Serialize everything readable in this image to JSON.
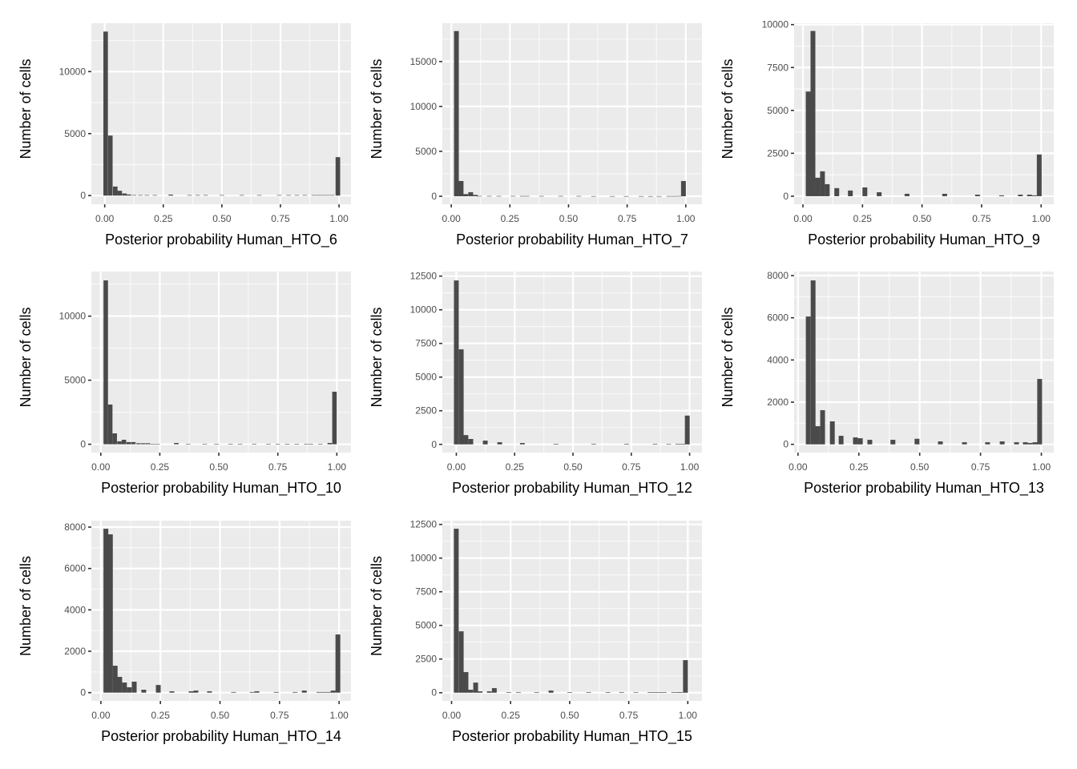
{
  "chart_data": [
    {
      "type": "bar",
      "title": "",
      "xlabel": "Posterior probability Human_HTO_6",
      "ylabel": "Number of cells",
      "xlim": [
        -0.057,
        1.051
      ],
      "ylim": [
        -700,
        13900
      ],
      "grid": true,
      "xticks": [
        "0.00",
        "0.25",
        "0.50",
        "0.75",
        "1.00"
      ],
      "yticks": [
        0,
        5000,
        10000
      ],
      "binwidth": 0.0194,
      "bins": [
        [
          0.004,
          13230
        ],
        [
          0.024,
          4840
        ],
        [
          0.045,
          730
        ],
        [
          0.064,
          390
        ],
        [
          0.084,
          170
        ],
        [
          0.103,
          90
        ],
        [
          0.125,
          40
        ],
        [
          0.152,
          40
        ],
        [
          0.18,
          40
        ],
        [
          0.214,
          40
        ],
        [
          0.282,
          80
        ],
        [
          0.362,
          40
        ],
        [
          0.397,
          40
        ],
        [
          0.431,
          40
        ],
        [
          0.5,
          40
        ],
        [
          0.585,
          40
        ],
        [
          0.66,
          40
        ],
        [
          0.745,
          40
        ],
        [
          0.785,
          40
        ],
        [
          0.82,
          40
        ],
        [
          0.854,
          40
        ],
        [
          0.892,
          40
        ],
        [
          0.912,
          40
        ],
        [
          0.931,
          40
        ],
        [
          0.951,
          40
        ],
        [
          0.971,
          40
        ],
        [
          0.995,
          3100
        ]
      ]
    },
    {
      "type": "bar",
      "title": "",
      "xlabel": "Posterior probability Human_HTO_7",
      "ylabel": "Number of cells",
      "xlim": [
        -0.038,
        1.069
      ],
      "ylim": [
        -890,
        19260
      ],
      "grid": true,
      "xticks": [
        "0.00",
        "0.25",
        "0.50",
        "0.75",
        "1.00"
      ],
      "yticks": [
        0,
        5000,
        10000,
        15000
      ],
      "binwidth": 0.0205,
      "bins": [
        [
          0.022,
          18390
        ],
        [
          0.042,
          1700
        ],
        [
          0.062,
          240
        ],
        [
          0.083,
          450
        ],
        [
          0.103,
          150
        ],
        [
          0.12,
          30
        ],
        [
          0.162,
          30
        ],
        [
          0.203,
          30
        ],
        [
          0.264,
          30
        ],
        [
          0.303,
          30
        ],
        [
          0.323,
          30
        ],
        [
          0.385,
          30
        ],
        [
          0.467,
          30
        ],
        [
          0.544,
          30
        ],
        [
          0.607,
          15
        ],
        [
          0.687,
          15
        ],
        [
          0.746,
          15
        ],
        [
          0.81,
          15
        ],
        [
          0.85,
          15
        ],
        [
          0.886,
          15
        ],
        [
          0.928,
          20
        ],
        [
          0.949,
          20
        ],
        [
          0.97,
          30
        ],
        [
          0.99,
          1700
        ]
      ]
    },
    {
      "type": "bar",
      "title": "",
      "xlabel": "Posterior probability Human_HTO_9",
      "ylabel": "Number of cells",
      "xlim": [
        -0.037,
        1.053
      ],
      "ylim": [
        -470,
        10080
      ],
      "grid": true,
      "xticks": [
        "0.00",
        "0.25",
        "0.50",
        "0.75",
        "1.00"
      ],
      "yticks": [
        0,
        2500,
        5000,
        7500,
        10000
      ],
      "binwidth": 0.0202,
      "bins": [
        [
          0.022,
          6100
        ],
        [
          0.042,
          9630
        ],
        [
          0.062,
          1075
        ],
        [
          0.082,
          1450
        ],
        [
          0.102,
          700
        ],
        [
          0.142,
          470
        ],
        [
          0.199,
          330
        ],
        [
          0.26,
          510
        ],
        [
          0.32,
          230
        ],
        [
          0.437,
          140
        ],
        [
          0.595,
          140
        ],
        [
          0.733,
          90
        ],
        [
          0.834,
          50
        ],
        [
          0.913,
          90
        ],
        [
          0.951,
          90
        ],
        [
          0.971,
          50
        ],
        [
          0.992,
          2430
        ]
      ]
    },
    {
      "type": "bar",
      "title": "",
      "xlabel": "Posterior probability Human_HTO_10",
      "ylabel": "Number of cells",
      "xlim": [
        -0.04,
        1.06
      ],
      "ylim": [
        -650,
        13480
      ],
      "grid": true,
      "xticks": [
        "0.00",
        "0.25",
        "0.50",
        "0.75",
        "1.00"
      ],
      "yticks": [
        0,
        5000,
        10000
      ],
      "binwidth": 0.019,
      "bins": [
        [
          0.021,
          12790
        ],
        [
          0.04,
          3100
        ],
        [
          0.059,
          850
        ],
        [
          0.079,
          230
        ],
        [
          0.098,
          350
        ],
        [
          0.118,
          170
        ],
        [
          0.138,
          170
        ],
        [
          0.16,
          80
        ],
        [
          0.18,
          80
        ],
        [
          0.2,
          80
        ],
        [
          0.22,
          30
        ],
        [
          0.24,
          30
        ],
        [
          0.32,
          100
        ],
        [
          0.37,
          30
        ],
        [
          0.44,
          30
        ],
        [
          0.49,
          30
        ],
        [
          0.55,
          30
        ],
        [
          0.59,
          30
        ],
        [
          0.65,
          30
        ],
        [
          0.71,
          30
        ],
        [
          0.75,
          30
        ],
        [
          0.79,
          20
        ],
        [
          0.83,
          30
        ],
        [
          0.87,
          30
        ],
        [
          0.89,
          30
        ],
        [
          0.93,
          30
        ],
        [
          0.97,
          100
        ],
        [
          0.99,
          4100
        ]
      ]
    },
    {
      "type": "bar",
      "title": "",
      "xlabel": "Posterior probability Human_HTO_12",
      "ylabel": "Number of cells",
      "xlim": [
        -0.06,
        1.053
      ],
      "ylim": [
        -610,
        12840
      ],
      "grid": true,
      "xticks": [
        "0.00",
        "0.25",
        "0.50",
        "0.75",
        "1.00"
      ],
      "yticks": [
        0,
        2500,
        5000,
        7500,
        10000,
        12500
      ],
      "binwidth": 0.0206,
      "bins": [
        [
          0.0,
          12180
        ],
        [
          0.021,
          7060
        ],
        [
          0.041,
          690
        ],
        [
          0.062,
          400
        ],
        [
          0.124,
          280
        ],
        [
          0.186,
          160
        ],
        [
          0.283,
          100
        ],
        [
          0.427,
          40
        ],
        [
          0.589,
          40
        ],
        [
          0.73,
          40
        ],
        [
          0.852,
          40
        ],
        [
          0.91,
          30
        ],
        [
          0.95,
          40
        ],
        [
          0.97,
          40
        ],
        [
          0.99,
          2140
        ]
      ]
    },
    {
      "type": "bar",
      "title": "",
      "xlabel": "Posterior probability Human_HTO_13",
      "ylabel": "Number of cells",
      "xlim": [
        -0.016,
        1.051
      ],
      "ylim": [
        -390,
        8190
      ],
      "grid": true,
      "xticks": [
        "0.00",
        "0.25",
        "0.50",
        "0.75",
        "1.00"
      ],
      "yticks": [
        0,
        2000,
        4000,
        6000,
        8000
      ],
      "binwidth": 0.0198,
      "bins": [
        [
          0.042,
          6060
        ],
        [
          0.062,
          7770
        ],
        [
          0.081,
          860
        ],
        [
          0.101,
          1620
        ],
        [
          0.141,
          1090
        ],
        [
          0.177,
          405
        ],
        [
          0.236,
          330
        ],
        [
          0.256,
          290
        ],
        [
          0.295,
          215
        ],
        [
          0.39,
          215
        ],
        [
          0.489,
          265
        ],
        [
          0.585,
          140
        ],
        [
          0.684,
          100
        ],
        [
          0.779,
          100
        ],
        [
          0.839,
          140
        ],
        [
          0.898,
          100
        ],
        [
          0.934,
          100
        ],
        [
          0.954,
          65
        ],
        [
          0.974,
          100
        ],
        [
          0.993,
          3100
        ]
      ]
    },
    {
      "type": "bar",
      "title": "",
      "xlabel": "Posterior probability Human_HTO_14",
      "ylabel": "Number of cells",
      "xlim": [
        -0.04,
        1.05
      ],
      "ylim": [
        -400,
        8310
      ],
      "grid": true,
      "xticks": [
        "0.00",
        "0.25",
        "0.50",
        "0.75",
        "1.00"
      ],
      "yticks": [
        0,
        2000,
        4000,
        6000,
        8000
      ],
      "binwidth": 0.0202,
      "bins": [
        [
          0.021,
          7920
        ],
        [
          0.04,
          7650
        ],
        [
          0.06,
          1300
        ],
        [
          0.079,
          760
        ],
        [
          0.099,
          490
        ],
        [
          0.119,
          260
        ],
        [
          0.14,
          530
        ],
        [
          0.18,
          140
        ],
        [
          0.241,
          370
        ],
        [
          0.298,
          65
        ],
        [
          0.379,
          65
        ],
        [
          0.399,
          100
        ],
        [
          0.456,
          65
        ],
        [
          0.557,
          30
        ],
        [
          0.635,
          30
        ],
        [
          0.655,
          65
        ],
        [
          0.736,
          30
        ],
        [
          0.815,
          30
        ],
        [
          0.854,
          100
        ],
        [
          0.915,
          30
        ],
        [
          0.935,
          30
        ],
        [
          0.955,
          30
        ],
        [
          0.975,
          100
        ],
        [
          0.995,
          2810
        ]
      ]
    },
    {
      "type": "bar",
      "title": "",
      "xlabel": "Posterior probability Human_HTO_15",
      "ylabel": "Number of cells",
      "xlim": [
        -0.039,
        1.06
      ],
      "ylim": [
        -610,
        12780
      ],
      "grid": true,
      "xticks": [
        "0.00",
        "0.25",
        "0.50",
        "0.75",
        "1.00"
      ],
      "yticks": [
        0,
        2500,
        5000,
        7500,
        10000,
        12500
      ],
      "binwidth": 0.0203,
      "bins": [
        [
          0.02,
          12180
        ],
        [
          0.041,
          4560
        ],
        [
          0.061,
          1530
        ],
        [
          0.081,
          220
        ],
        [
          0.102,
          750
        ],
        [
          0.121,
          100
        ],
        [
          0.16,
          100
        ],
        [
          0.181,
          340
        ],
        [
          0.242,
          40
        ],
        [
          0.283,
          40
        ],
        [
          0.36,
          40
        ],
        [
          0.421,
          160
        ],
        [
          0.5,
          40
        ],
        [
          0.58,
          40
        ],
        [
          0.662,
          40
        ],
        [
          0.72,
          40
        ],
        [
          0.78,
          20
        ],
        [
          0.84,
          40
        ],
        [
          0.86,
          40
        ],
        [
          0.88,
          40
        ],
        [
          0.9,
          40
        ],
        [
          0.94,
          40
        ],
        [
          0.96,
          40
        ],
        [
          0.97,
          40
        ],
        [
          0.99,
          2420
        ]
      ]
    }
  ]
}
